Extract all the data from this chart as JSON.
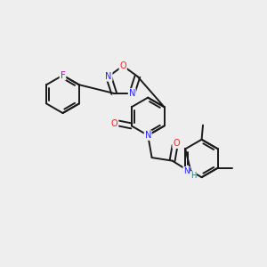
{
  "background_color": "#eeeeee",
  "bond_color": "#1a1a1a",
  "atom_colors": {
    "N": "#2020ff",
    "O": "#ff2020",
    "F": "#cc00cc",
    "H": "#227777",
    "C": "#1a1a1a"
  },
  "font_size": 7.0,
  "lw": 1.4,
  "figsize": [
    3.0,
    3.0
  ],
  "dpi": 100
}
